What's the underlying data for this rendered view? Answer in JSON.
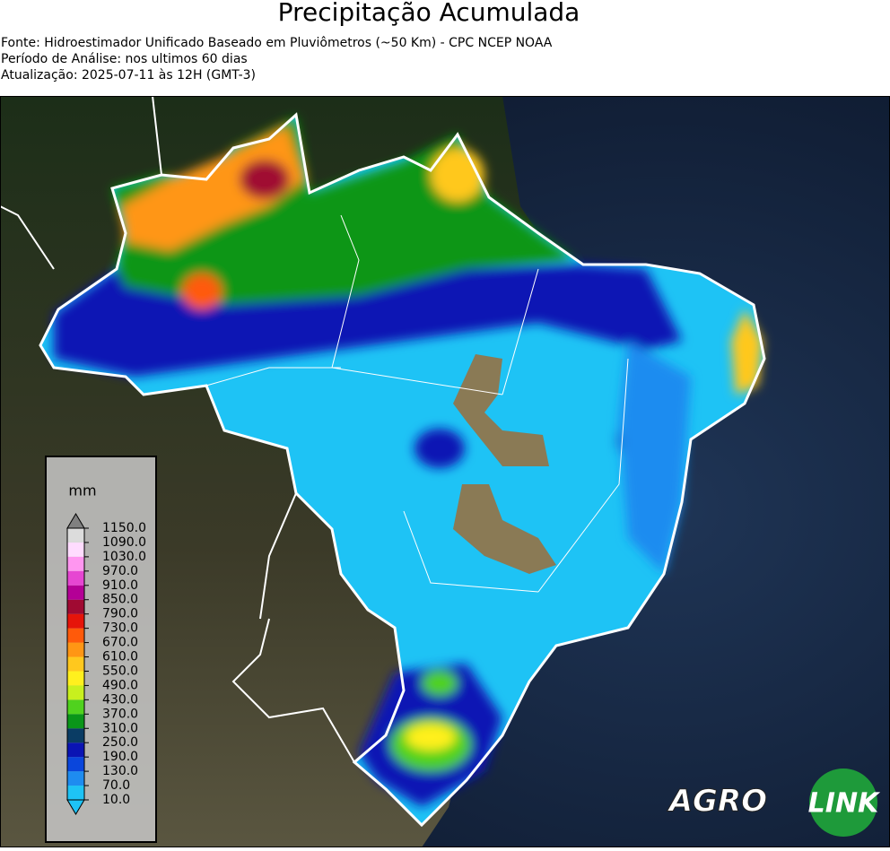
{
  "header": {
    "title": "Precipitação Acumulada",
    "lines": [
      "Fonte: Hidroestimador Unificado Baseado em Pluviômetros (~50 Km) - CPC NCEP NOAA",
      "Período de Análise: nos ultimos 60 dias",
      "Atualização: 2025-07-11 às 12H (GMT-3)"
    ]
  },
  "colorbar": {
    "unit": "mm",
    "ticks": [
      {
        "value": 10,
        "label": "10.0"
      },
      {
        "value": 70,
        "label": "70.0"
      },
      {
        "value": 130,
        "label": "130.0"
      },
      {
        "value": 190,
        "label": "190.0"
      },
      {
        "value": 250,
        "label": "250.0"
      },
      {
        "value": 310,
        "label": "310.0"
      },
      {
        "value": 370,
        "label": "370.0"
      },
      {
        "value": 430,
        "label": "430.0"
      },
      {
        "value": 490,
        "label": "490.0"
      },
      {
        "value": 550,
        "label": "550.0"
      },
      {
        "value": 610,
        "label": "610.0"
      },
      {
        "value": 670,
        "label": "670.0"
      },
      {
        "value": 730,
        "label": "730.0"
      },
      {
        "value": 790,
        "label": "790.0"
      },
      {
        "value": 850,
        "label": "850.0"
      },
      {
        "value": 910,
        "label": "910.0"
      },
      {
        "value": 970,
        "label": "970.0"
      },
      {
        "value": 1030,
        "label": "1030.0"
      },
      {
        "value": 1090,
        "label": "1090.0"
      },
      {
        "value": 1150,
        "label": "1150.0"
      }
    ],
    "colors": [
      "#1ec3f5",
      "#1e8cf0",
      "#0a46dc",
      "#0a14b4",
      "#0a3c64",
      "#0a9619",
      "#50d21e",
      "#c8f01e",
      "#fff01e",
      "#ffc81e",
      "#ff9614",
      "#ff5a0a",
      "#e6140a",
      "#a00a32",
      "#b40096",
      "#e646d2",
      "#ff96f0",
      "#ffdcff",
      "#dcdcdc"
    ],
    "under_color": "#1ec3f5",
    "over_color": "#808080"
  },
  "logo": {
    "left": "AGRO",
    "right": "LINK"
  }
}
